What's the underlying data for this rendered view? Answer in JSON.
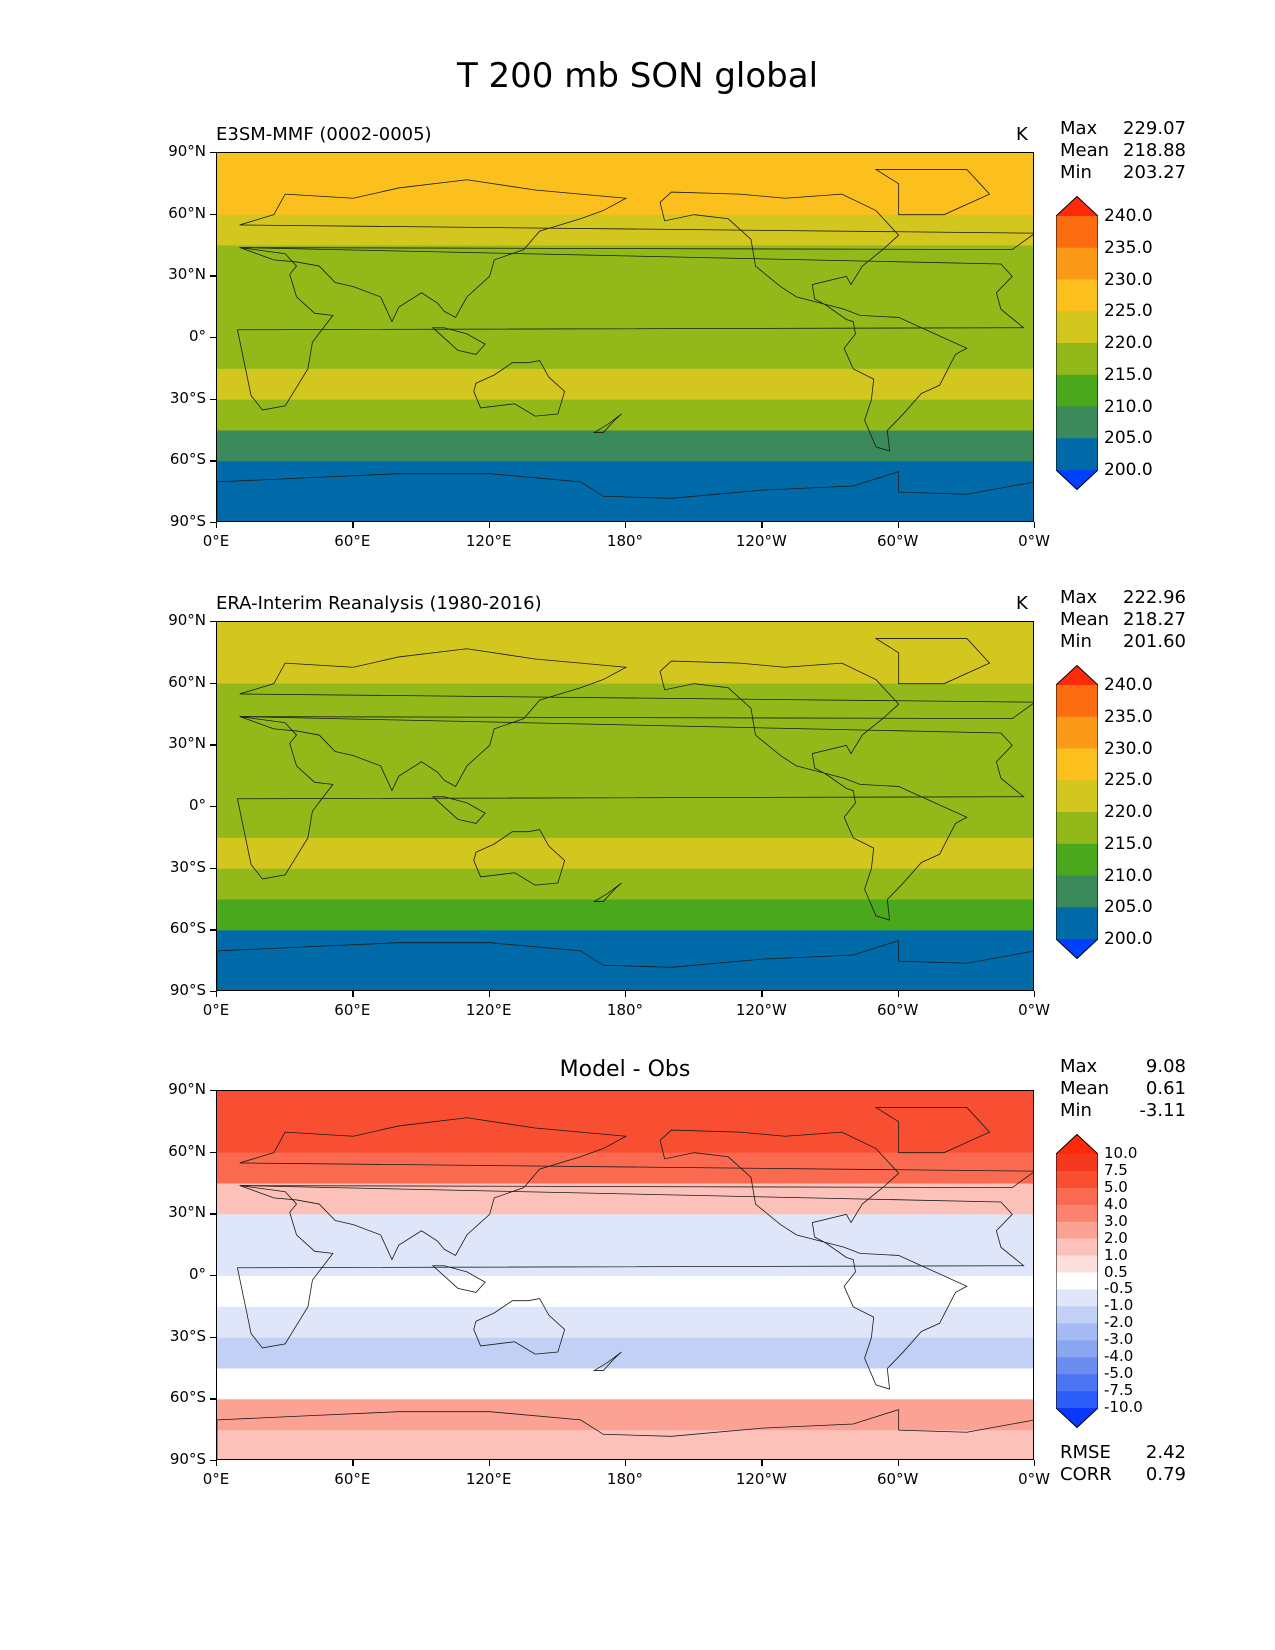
{
  "figure_title": "T 200 mb SON global",
  "chart_data": [
    {
      "type": "heatmap",
      "title": "E3SM-MMF (0002-0005)",
      "units": "K",
      "stats": {
        "Max": "229.07",
        "Mean": "218.88",
        "Min": "203.27"
      },
      "levels": [
        "200.0",
        "205.0",
        "210.0",
        "215.0",
        "220.0",
        "225.0",
        "230.0",
        "235.0",
        "240.0"
      ],
      "colors": [
        "#0040ff",
        "#006ba8",
        "#3a8a5c",
        "#4aa81c",
        "#92b81a",
        "#d2c61f",
        "#fbc01e",
        "#fb9a16",
        "#fb6d10",
        "#ff2a0a"
      ],
      "band_colors_by_lat": [
        "#fbc01e",
        "#fbc01e",
        "#d2c61f",
        "#92b81a",
        "#92b81a",
        "#92b81a",
        "#92b81a",
        "#d2c61f",
        "#92b81a",
        "#3a8a5c",
        "#006ba8",
        "#006ba8"
      ],
      "xticks": [
        "0°E",
        "60°E",
        "120°E",
        "180°",
        "120°W",
        "60°W",
        "0°W"
      ],
      "yticks": [
        "90°N",
        "60°N",
        "30°N",
        "0°",
        "30°S",
        "60°S",
        "90°S"
      ],
      "lon_range": [
        0,
        360
      ],
      "lat_range": [
        -90,
        90
      ]
    },
    {
      "type": "heatmap",
      "title": "ERA-Interim Reanalysis (1980-2016)",
      "units": "K",
      "stats": {
        "Max": "222.96",
        "Mean": "218.27",
        "Min": "201.60"
      },
      "levels": [
        "200.0",
        "205.0",
        "210.0",
        "215.0",
        "220.0",
        "225.0",
        "230.0",
        "235.0",
        "240.0"
      ],
      "colors": [
        "#0040ff",
        "#006ba8",
        "#3a8a5c",
        "#4aa81c",
        "#92b81a",
        "#d2c61f",
        "#fbc01e",
        "#fb9a16",
        "#fb6d10",
        "#ff2a0a"
      ],
      "band_colors_by_lat": [
        "#d2c61f",
        "#d2c61f",
        "#92b81a",
        "#92b81a",
        "#92b81a",
        "#92b81a",
        "#92b81a",
        "#d2c61f",
        "#92b81a",
        "#4aa81c",
        "#006ba8",
        "#006ba8"
      ],
      "xticks": [
        "0°E",
        "60°E",
        "120°E",
        "180°",
        "120°W",
        "60°W",
        "0°W"
      ],
      "yticks": [
        "90°N",
        "60°N",
        "30°N",
        "0°",
        "30°S",
        "60°S",
        "90°S"
      ],
      "lon_range": [
        0,
        360
      ],
      "lat_range": [
        -90,
        90
      ]
    },
    {
      "type": "heatmap",
      "title": "Model - Obs",
      "units": "",
      "stats": {
        "Max": "9.08",
        "Mean": "0.61",
        "Min": "-3.11"
      },
      "levels": [
        "-10.0",
        "-7.5",
        "-5.0",
        "-4.0",
        "-3.0",
        "-2.0",
        "-1.0",
        "-0.5",
        "0.5",
        "1.0",
        "2.0",
        "3.0",
        "4.0",
        "5.0",
        "7.5",
        "10.0"
      ],
      "colors": [
        "#0a38ff",
        "#2d5df8",
        "#4a75f3",
        "#6a8ef0",
        "#8aa6f0",
        "#a6bbf3",
        "#c3d0f6",
        "#dfe6fa",
        "#ffffff",
        "#fde0dc",
        "#fcc2ba",
        "#fca295",
        "#fc8270",
        "#fa6a50",
        "#f84e32",
        "#f53820",
        "#ff2a0a"
      ],
      "band_colors_by_lat": [
        "#f84e32",
        "#f84e32",
        "#fa6a50",
        "#fcc2ba",
        "#dfe6fa",
        "#dfe6fa",
        "#ffffff",
        "#dfe6fa",
        "#c3d0f6",
        "#ffffff",
        "#fca295",
        "#fcc2ba"
      ],
      "xticks": [
        "0°E",
        "60°E",
        "120°E",
        "180°",
        "120°W",
        "60°W",
        "0°W"
      ],
      "yticks": [
        "90°N",
        "60°N",
        "30°N",
        "0°",
        "30°S",
        "60°S",
        "90°S"
      ],
      "lon_range": [
        0,
        360
      ],
      "lat_range": [
        -90,
        90
      ],
      "footer_stats": {
        "RMSE": "2.42",
        "CORR": "0.79"
      }
    }
  ]
}
